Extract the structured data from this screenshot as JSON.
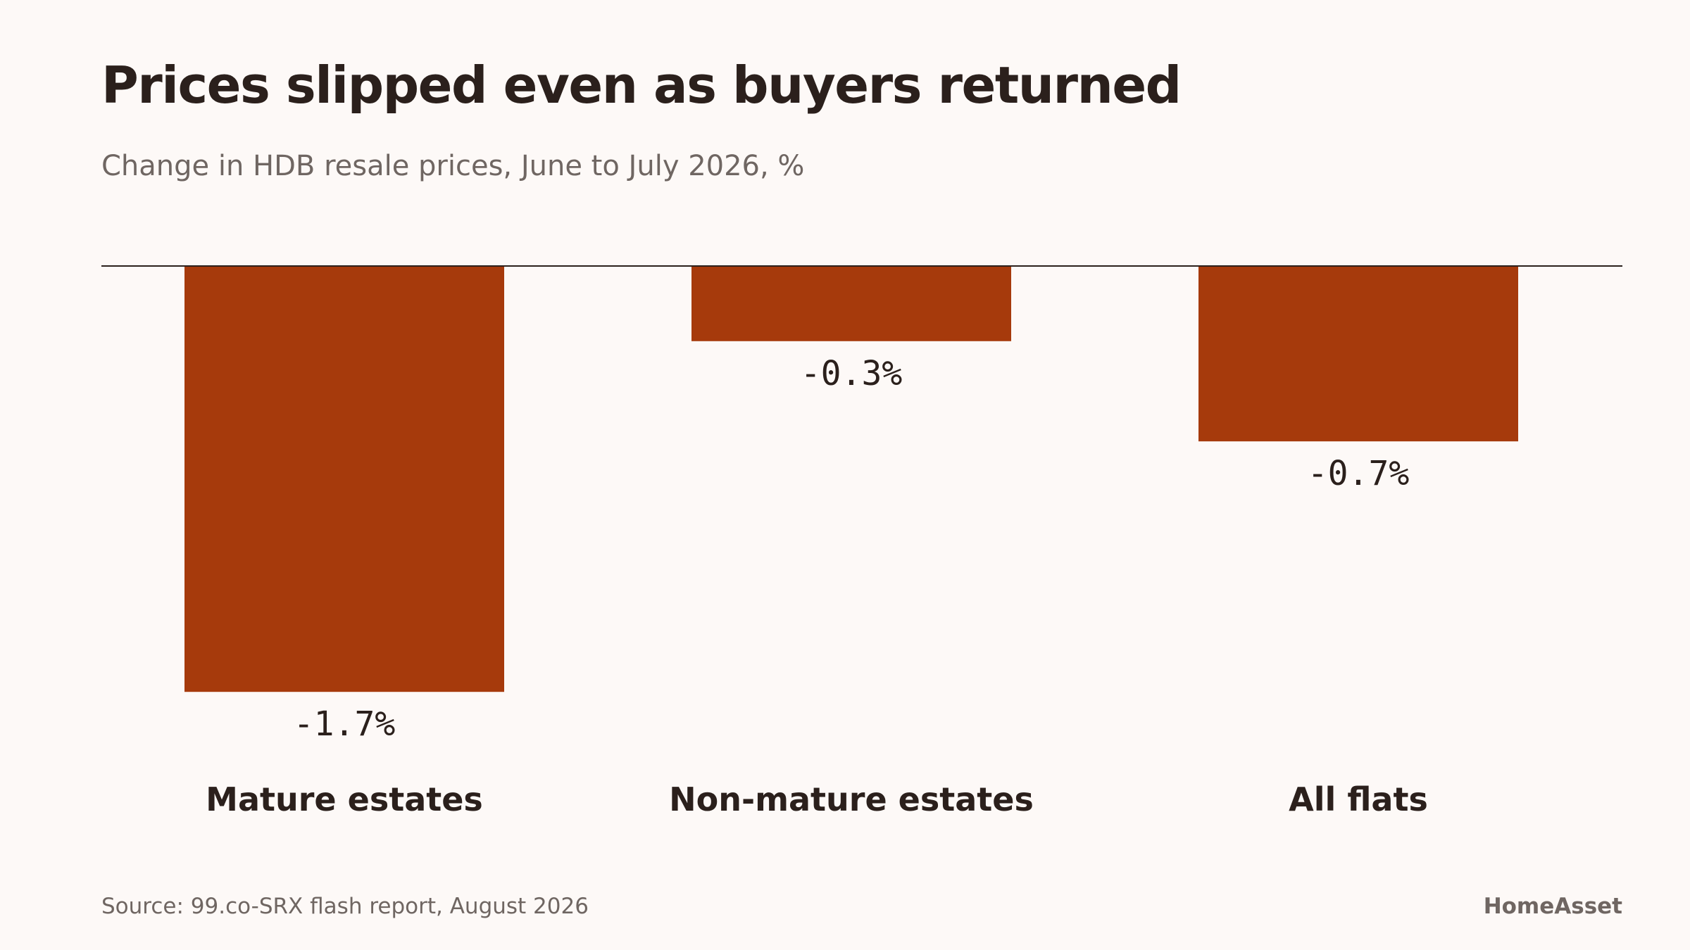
{
  "header": {
    "title": "Prices slipped even as buyers returned",
    "subtitle": "Change in HDB resale prices, June to July 2026, %"
  },
  "footer": {
    "source": "Source: 99.co-SRX flash report, August 2026",
    "brand": "HomeAsset"
  },
  "colors": {
    "bar": "#a63a0c",
    "background": "#fdf9f7",
    "text": "#2b201c",
    "muted_text": "#6f6662"
  },
  "chart_data": {
    "type": "bar",
    "title": "Prices slipped even as buyers returned",
    "subtitle": "Change in HDB resale prices, June to July 2026, %",
    "xlabel": "",
    "ylabel": "",
    "categories": [
      "Mature estates",
      "Non-mature estates",
      "All flats"
    ],
    "values": [
      -1.7,
      -0.3,
      -0.7
    ],
    "value_labels": [
      "-1.7%",
      "-0.3%",
      "-0.7%"
    ],
    "unit": "%",
    "ylim": [
      -1.7,
      0
    ],
    "baseline": 0,
    "grid": false,
    "legend": "none"
  }
}
